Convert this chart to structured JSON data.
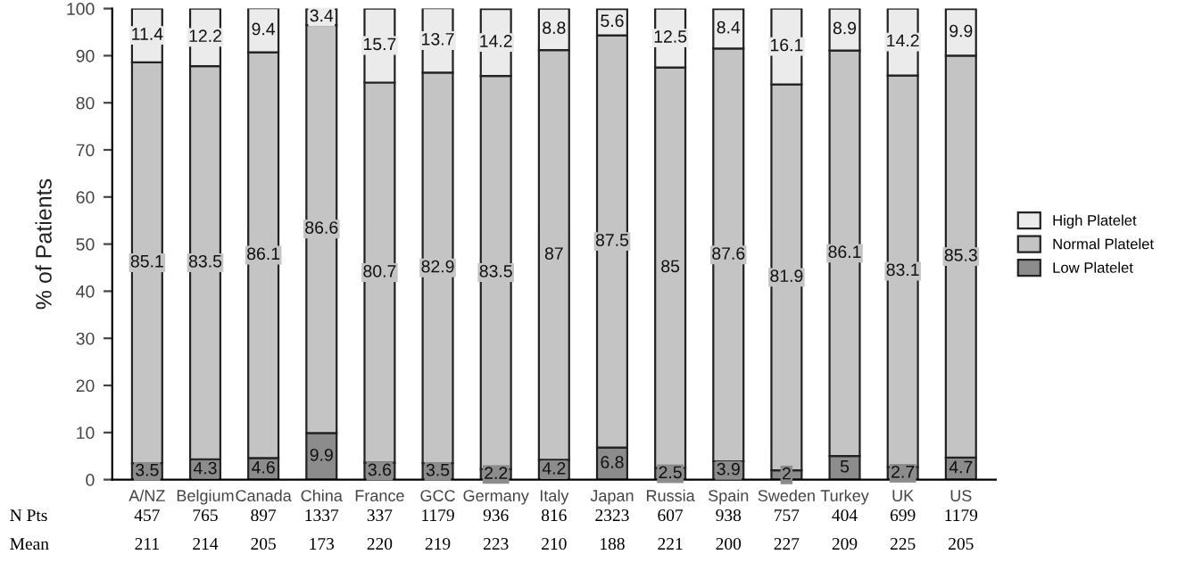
{
  "chart_data": {
    "type": "bar",
    "stacked": true,
    "ylabel": "% of Patients",
    "categories": [
      "A/NZ",
      "Belgium",
      "Canada",
      "China",
      "France",
      "GCC",
      "Germany",
      "Italy",
      "Japan",
      "Russia",
      "Spain",
      "Sweden",
      "Turkey",
      "UK",
      "US"
    ],
    "series": [
      {
        "name": "Low Platelet",
        "color": "#8c8c8c",
        "values": [
          3.5,
          4.3,
          4.6,
          9.9,
          3.6,
          3.5,
          2.2,
          4.2,
          6.8,
          2.5,
          3.9,
          2,
          5,
          2.7,
          4.7
        ]
      },
      {
        "name": "Normal Platelet",
        "color": "#c4c4c4",
        "values": [
          85.1,
          83.5,
          86.1,
          86.6,
          80.7,
          82.9,
          83.5,
          87,
          87.5,
          85,
          87.6,
          81.9,
          86.1,
          83.1,
          85.3
        ]
      },
      {
        "name": "High Platelet",
        "color": "#ebebeb",
        "values": [
          11.4,
          12.2,
          9.4,
          3.4,
          15.7,
          13.7,
          14.2,
          8.8,
          5.6,
          12.5,
          8.4,
          16.1,
          8.9,
          14.2,
          9.9
        ]
      }
    ],
    "ylim": [
      0,
      100
    ],
    "yticks": [
      0,
      10,
      20,
      30,
      40,
      50,
      60,
      70,
      80,
      90,
      100
    ],
    "data_labels": true,
    "legend": "right",
    "grid": false,
    "annotations": [
      "N Pts",
      "457",
      "765",
      "897",
      "1337",
      "337",
      "1179",
      "936",
      "816",
      "2323",
      "607",
      "938",
      "757",
      "404",
      "699",
      "1179",
      "Mean",
      "211",
      "214",
      "205",
      "173",
      "220",
      "219",
      "223",
      "210",
      "188",
      "221",
      "200",
      "227",
      "209",
      "225",
      "205"
    ]
  }
}
